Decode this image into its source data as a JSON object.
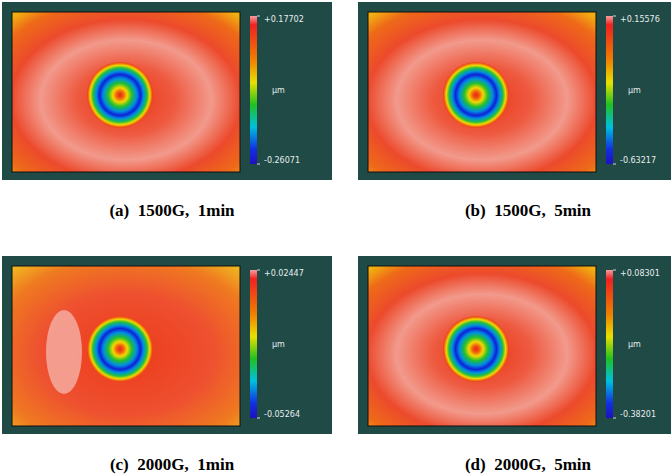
{
  "chart_data": [
    {
      "type": "heatmap",
      "title": "(a)  1500G,  1min",
      "colorbar_label": "μm",
      "colorbar_range": [
        -0.26071,
        0.17702
      ],
      "colorbar_ticks": [
        {
          "value": 0.17702,
          "label": "+0.17702"
        },
        {
          "value": -0.26071,
          "label": "-0.26071"
        }
      ]
    },
    {
      "type": "heatmap",
      "title": "(b)  1500G,  5min",
      "colorbar_label": "μm",
      "colorbar_range": [
        -0.63217,
        0.15576
      ],
      "colorbar_ticks": [
        {
          "value": 0.15576,
          "label": "+0.15576"
        },
        {
          "value": -0.63217,
          "label": "-0.63217"
        }
      ]
    },
    {
      "type": "heatmap",
      "title": "(c)  2000G,  1min",
      "colorbar_label": "μm",
      "colorbar_range": [
        -0.05264,
        0.02447
      ],
      "colorbar_ticks": [
        {
          "value": 0.02447,
          "label": "+0.02447"
        },
        {
          "value": -0.05264,
          "label": "-0.05264"
        }
      ]
    },
    {
      "type": "heatmap",
      "title": "(d)  2000G,  5min",
      "colorbar_label": "μm",
      "colorbar_range": [
        -0.38201,
        0.08301
      ],
      "colorbar_ticks": [
        {
          "value": 0.08301,
          "label": "+0.08301"
        },
        {
          "value": -0.38201,
          "label": "-0.38201"
        }
      ]
    }
  ]
}
